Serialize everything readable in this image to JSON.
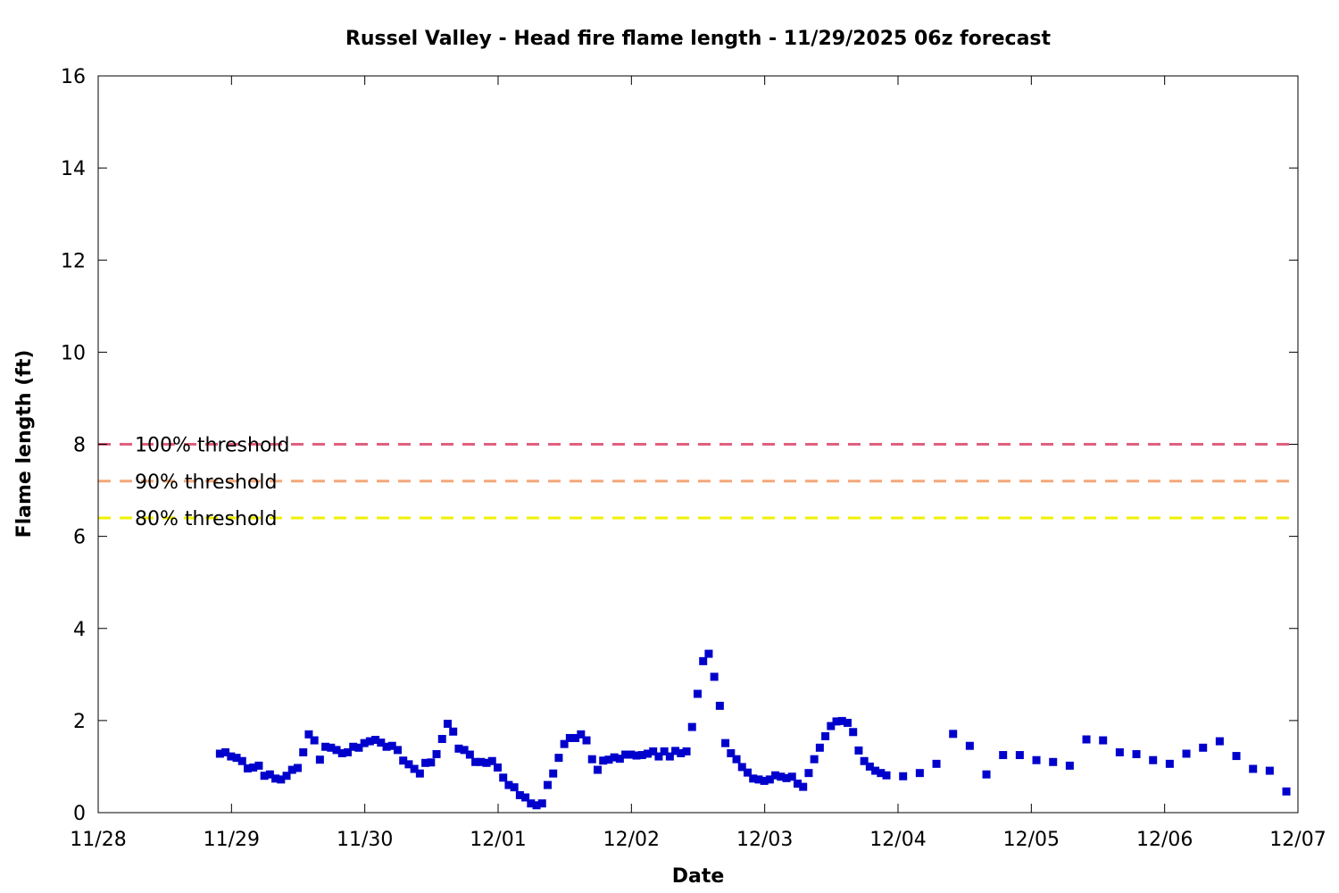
{
  "chart_data": {
    "type": "scatter",
    "title": "Russel Valley - Head fire flame length - 11/29/2025 06z forecast",
    "xlabel": "Date",
    "ylabel": "Flame length (ft)",
    "xlim": [
      "2025-11-28T00:00",
      "2025-12-07T00:00"
    ],
    "ylim": [
      0,
      16
    ],
    "x_ticks": [
      {
        "value": "2025-11-28T00:00",
        "label": "11/28"
      },
      {
        "value": "2025-11-29T00:00",
        "label": "11/29"
      },
      {
        "value": "2025-11-30T00:00",
        "label": "11/30"
      },
      {
        "value": "2025-12-01T00:00",
        "label": "12/01"
      },
      {
        "value": "2025-12-02T00:00",
        "label": "12/02"
      },
      {
        "value": "2025-12-03T00:00",
        "label": "12/03"
      },
      {
        "value": "2025-12-04T00:00",
        "label": "12/04"
      },
      {
        "value": "2025-12-05T00:00",
        "label": "12/05"
      },
      {
        "value": "2025-12-06T00:00",
        "label": "12/06"
      },
      {
        "value": "2025-12-07T00:00",
        "label": "12/07"
      }
    ],
    "y_ticks": [
      0,
      2,
      4,
      6,
      8,
      10,
      12,
      14,
      16
    ],
    "grid": false,
    "marker_color": "#0000cc",
    "thresholds": [
      {
        "label": "100% threshold",
        "value": 8.0,
        "color": "#e0607e"
      },
      {
        "label": "90% threshold",
        "value": 7.2,
        "color": "#f4a87a"
      },
      {
        "label": "80% threshold",
        "value": 6.4,
        "color": "#f0f000"
      }
    ],
    "series": [
      {
        "points": [
          [
            "2025-11-28T21:55",
            1.28
          ],
          [
            "2025-11-28T22:55",
            1.31
          ],
          [
            "2025-11-28T23:55",
            1.22
          ],
          [
            "2025-11-29T00:55",
            1.19
          ],
          [
            "2025-11-29T01:55",
            1.12
          ],
          [
            "2025-11-29T02:55",
            0.96
          ],
          [
            "2025-11-29T03:55",
            0.98
          ],
          [
            "2025-11-29T04:55",
            1.02
          ],
          [
            "2025-11-29T05:55",
            0.8
          ],
          [
            "2025-11-29T06:55",
            0.83
          ],
          [
            "2025-11-29T07:55",
            0.74
          ],
          [
            "2025-11-29T08:55",
            0.72
          ],
          [
            "2025-11-29T09:55",
            0.8
          ],
          [
            "2025-11-29T10:55",
            0.93
          ],
          [
            "2025-11-29T11:55",
            0.97
          ],
          [
            "2025-11-29T12:55",
            1.31
          ],
          [
            "2025-11-29T13:55",
            1.7
          ],
          [
            "2025-11-29T14:55",
            1.57
          ],
          [
            "2025-11-29T15:55",
            1.15
          ],
          [
            "2025-11-29T16:55",
            1.43
          ],
          [
            "2025-11-29T17:55",
            1.41
          ],
          [
            "2025-11-29T18:55",
            1.36
          ],
          [
            "2025-11-29T19:55",
            1.29
          ],
          [
            "2025-11-29T20:55",
            1.31
          ],
          [
            "2025-11-29T21:55",
            1.43
          ],
          [
            "2025-11-29T22:55",
            1.41
          ],
          [
            "2025-11-29T23:55",
            1.51
          ],
          [
            "2025-11-30T00:55",
            1.55
          ],
          [
            "2025-11-30T01:55",
            1.58
          ],
          [
            "2025-11-30T02:55",
            1.52
          ],
          [
            "2025-11-30T03:55",
            1.43
          ],
          [
            "2025-11-30T04:55",
            1.45
          ],
          [
            "2025-11-30T05:55",
            1.36
          ],
          [
            "2025-11-30T06:55",
            1.13
          ],
          [
            "2025-11-30T07:55",
            1.05
          ],
          [
            "2025-11-30T08:55",
            0.95
          ],
          [
            "2025-11-30T09:55",
            0.85
          ],
          [
            "2025-11-30T10:55",
            1.08
          ],
          [
            "2025-11-30T11:55",
            1.09
          ],
          [
            "2025-11-30T12:55",
            1.27
          ],
          [
            "2025-11-30T13:55",
            1.6
          ],
          [
            "2025-11-30T14:55",
            1.93
          ],
          [
            "2025-11-30T15:55",
            1.76
          ],
          [
            "2025-11-30T16:55",
            1.39
          ],
          [
            "2025-11-30T17:55",
            1.36
          ],
          [
            "2025-11-30T18:55",
            1.26
          ],
          [
            "2025-11-30T19:55",
            1.1
          ],
          [
            "2025-11-30T20:55",
            1.1
          ],
          [
            "2025-11-30T21:55",
            1.08
          ],
          [
            "2025-11-30T22:55",
            1.12
          ],
          [
            "2025-11-30T23:55",
            0.98
          ],
          [
            "2025-12-01T00:55",
            0.76
          ],
          [
            "2025-12-01T01:55",
            0.6
          ],
          [
            "2025-12-01T02:55",
            0.55
          ],
          [
            "2025-12-01T03:55",
            0.38
          ],
          [
            "2025-12-01T04:55",
            0.33
          ],
          [
            "2025-12-01T05:55",
            0.2
          ],
          [
            "2025-12-01T06:55",
            0.16
          ],
          [
            "2025-12-01T07:55",
            0.2
          ],
          [
            "2025-12-01T08:55",
            0.6
          ],
          [
            "2025-12-01T09:55",
            0.85
          ],
          [
            "2025-12-01T10:55",
            1.19
          ],
          [
            "2025-12-01T11:55",
            1.49
          ],
          [
            "2025-12-01T12:55",
            1.62
          ],
          [
            "2025-12-01T13:55",
            1.62
          ],
          [
            "2025-12-01T14:55",
            1.7
          ],
          [
            "2025-12-01T15:55",
            1.57
          ],
          [
            "2025-12-01T16:55",
            1.16
          ],
          [
            "2025-12-01T17:55",
            0.93
          ],
          [
            "2025-12-01T18:55",
            1.13
          ],
          [
            "2025-12-01T19:55",
            1.15
          ],
          [
            "2025-12-01T20:55",
            1.2
          ],
          [
            "2025-12-01T21:55",
            1.17
          ],
          [
            "2025-12-01T22:55",
            1.26
          ],
          [
            "2025-12-01T23:55",
            1.26
          ],
          [
            "2025-12-02T00:55",
            1.24
          ],
          [
            "2025-12-02T01:55",
            1.25
          ],
          [
            "2025-12-02T02:55",
            1.28
          ],
          [
            "2025-12-02T03:55",
            1.33
          ],
          [
            "2025-12-02T04:55",
            1.22
          ],
          [
            "2025-12-02T05:55",
            1.33
          ],
          [
            "2025-12-02T06:55",
            1.22
          ],
          [
            "2025-12-02T07:55",
            1.34
          ],
          [
            "2025-12-02T08:55",
            1.29
          ],
          [
            "2025-12-02T09:55",
            1.33
          ],
          [
            "2025-12-02T10:55",
            1.86
          ],
          [
            "2025-12-02T11:55",
            2.58
          ],
          [
            "2025-12-02T12:55",
            3.29
          ],
          [
            "2025-12-02T13:55",
            3.45
          ],
          [
            "2025-12-02T14:55",
            2.95
          ],
          [
            "2025-12-02T15:55",
            2.32
          ],
          [
            "2025-12-02T16:55",
            1.51
          ],
          [
            "2025-12-02T17:55",
            1.29
          ],
          [
            "2025-12-02T18:55",
            1.16
          ],
          [
            "2025-12-02T19:55",
            0.99
          ],
          [
            "2025-12-02T20:55",
            0.87
          ],
          [
            "2025-12-02T21:55",
            0.74
          ],
          [
            "2025-12-02T22:55",
            0.72
          ],
          [
            "2025-12-02T23:55",
            0.69
          ],
          [
            "2025-12-03T00:55",
            0.72
          ],
          [
            "2025-12-03T01:55",
            0.81
          ],
          [
            "2025-12-03T02:55",
            0.78
          ],
          [
            "2025-12-03T03:55",
            0.75
          ],
          [
            "2025-12-03T04:55",
            0.78
          ],
          [
            "2025-12-03T05:55",
            0.63
          ],
          [
            "2025-12-03T06:55",
            0.56
          ],
          [
            "2025-12-03T07:55",
            0.86
          ],
          [
            "2025-12-03T08:55",
            1.16
          ],
          [
            "2025-12-03T09:55",
            1.41
          ],
          [
            "2025-12-03T10:55",
            1.66
          ],
          [
            "2025-12-03T11:55",
            1.88
          ],
          [
            "2025-12-03T12:55",
            1.98
          ],
          [
            "2025-12-03T13:55",
            1.99
          ],
          [
            "2025-12-03T14:55",
            1.95
          ],
          [
            "2025-12-03T15:55",
            1.75
          ],
          [
            "2025-12-03T16:55",
            1.35
          ],
          [
            "2025-12-03T17:55",
            1.12
          ],
          [
            "2025-12-03T18:55",
            1.0
          ],
          [
            "2025-12-03T19:55",
            0.91
          ],
          [
            "2025-12-03T20:55",
            0.86
          ],
          [
            "2025-12-03T21:55",
            0.81
          ],
          [
            "2025-12-04T00:55",
            0.79
          ],
          [
            "2025-12-04T03:55",
            0.86
          ],
          [
            "2025-12-04T06:55",
            1.06
          ],
          [
            "2025-12-04T09:55",
            1.71
          ],
          [
            "2025-12-04T12:55",
            1.45
          ],
          [
            "2025-12-04T15:55",
            0.83
          ],
          [
            "2025-12-04T18:55",
            1.25
          ],
          [
            "2025-12-04T21:55",
            1.25
          ],
          [
            "2025-12-05T00:55",
            1.14
          ],
          [
            "2025-12-05T03:55",
            1.1
          ],
          [
            "2025-12-05T06:55",
            1.02
          ],
          [
            "2025-12-05T09:55",
            1.59
          ],
          [
            "2025-12-05T12:55",
            1.57
          ],
          [
            "2025-12-05T15:55",
            1.31
          ],
          [
            "2025-12-05T18:55",
            1.27
          ],
          [
            "2025-12-05T21:55",
            1.14
          ],
          [
            "2025-12-06T00:55",
            1.06
          ],
          [
            "2025-12-06T03:55",
            1.28
          ],
          [
            "2025-12-06T06:55",
            1.41
          ],
          [
            "2025-12-06T09:55",
            1.55
          ],
          [
            "2025-12-06T12:55",
            1.23
          ],
          [
            "2025-12-06T15:55",
            0.95
          ],
          [
            "2025-12-06T18:55",
            0.91
          ],
          [
            "2025-12-06T21:55",
            0.46
          ]
        ]
      }
    ]
  }
}
